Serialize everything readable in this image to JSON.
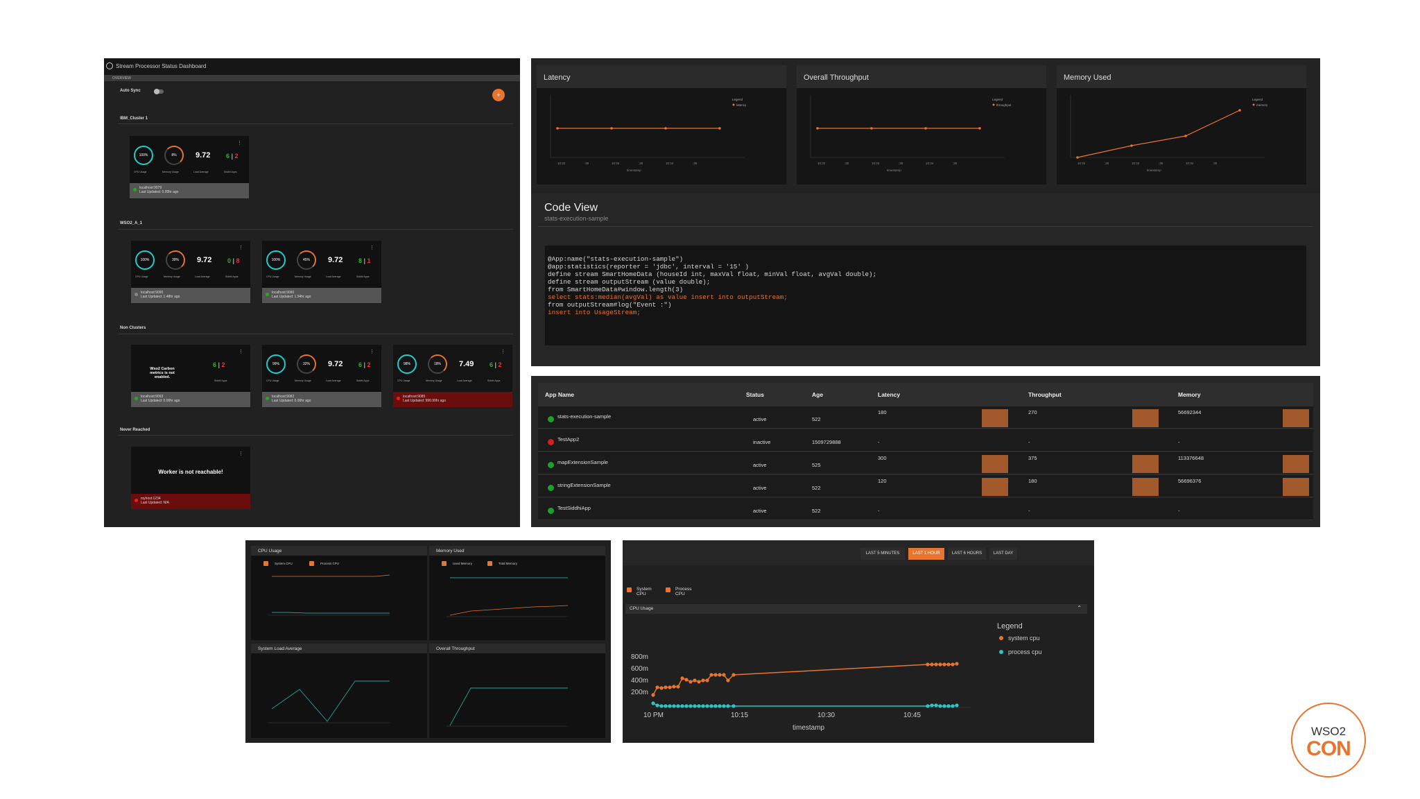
{
  "dashboard": {
    "title": "Stream Processor Status Dashboard",
    "tab": "OVERVIEW",
    "auto_sync": "Auto Sync",
    "groups": [
      {
        "name": "IBM_Cluster 1"
      },
      {
        "name": "WSO2_A_1"
      },
      {
        "name": "Non Clusters"
      },
      {
        "name": "Never Reached"
      }
    ],
    "card_labels": {
      "cpu": "CPU Usage",
      "memory": "Memory Usage",
      "load": "Load Average",
      "siddhi": "Siddhi Apps"
    },
    "cards": [
      {
        "cpu": "100%",
        "mem": "8%",
        "load": "9.72",
        "active": "6",
        "inactive": "2",
        "host": "localhost:9079",
        "updated": "Last Updated: 0.00hr ago"
      },
      {
        "cpu": "100%",
        "mem": "39%",
        "load": "9.72",
        "active": "0",
        "inactive": "8",
        "host": "localhost:9090",
        "updated": "Last Updated: 1.48hr ago"
      },
      {
        "cpu": "100%",
        "mem": "45%",
        "load": "9.72",
        "active": "8",
        "inactive": "1",
        "host": "localhost:9090",
        "updated": "Last Updated: 1.94hr ago"
      },
      {
        "message": "Wso2 Carbon metrics is not enabled.",
        "active": "6",
        "inactive": "2",
        "host": "localhost:9093",
        "updated": "Last Updated: 0.00hr ago"
      },
      {
        "cpu": "99%",
        "mem": "32%",
        "load": "9.72",
        "active": "6",
        "inactive": "2",
        "host": "localhost:9082",
        "updated": "Last Updated: 0.00hr ago"
      },
      {
        "cpu": "98%",
        "mem": "18%",
        "load": "7.49",
        "active": "6",
        "inactive": "2",
        "host": "localhost:9085",
        "updated": "Last Updated: 990.99hr ago"
      },
      {
        "message": "Worker is not reachable!",
        "host": "myhost:1234",
        "updated": "Last Updated: N/A"
      }
    ]
  },
  "metrics": {
    "panels": [
      {
        "title": "Latency",
        "legend": "Legend",
        "series": "latency",
        "x_ticks": [
          "10:32",
          ":30",
          "10:33",
          ":30",
          "10:34",
          ":30"
        ],
        "xlabel": "timestamp"
      },
      {
        "title": "Overall Throughput",
        "legend": "Legend",
        "series": "throughput",
        "x_ticks": [
          "10:32",
          ":30",
          "10:33",
          ":30",
          "10:34",
          ":30"
        ],
        "xlabel": "timestamp"
      },
      {
        "title": "Memory Used",
        "legend": "Legend",
        "series": "memory",
        "x_ticks": [
          "10:32",
          ":30",
          "10:33",
          ":30",
          "10:34",
          ":30"
        ],
        "xlabel": "timestamp"
      }
    ],
    "code_view": {
      "title": "Code View",
      "subtitle": "stats-execution-sample",
      "lines": [
        "@App:name(\"stats-execution-sample\")",
        "@app:statistics(reporter = 'jdbc', interval = '15' )",
        "define stream SmartHomeData (houseId int, maxVal float, minVal float, avgVal double);",
        "",
        "define stream outputStream (value double);",
        "",
        "from SmartHomeData#window.length(3)",
        "select stats:median(avgVal) as value insert into outputStream;",
        "",
        "from outputStream#log(\"Event :\")",
        "insert into UsageStream;"
      ]
    }
  },
  "apps_table": {
    "headers": [
      "App Name",
      "Status",
      "Age",
      "Latency",
      "Throughput",
      "Memory"
    ],
    "rows": [
      {
        "name": "stats-execution-sample",
        "status": "active",
        "age": "522",
        "latency": "180",
        "throughput": "270",
        "memory": "56692344",
        "color": "#1e9e2e"
      },
      {
        "name": "TestApp2",
        "status": "inactive",
        "age": "1509729888",
        "latency": "-",
        "throughput": "-",
        "memory": "-",
        "color": "#d42020"
      },
      {
        "name": "mapExtensionSample",
        "status": "active",
        "age": "525",
        "latency": "300",
        "throughput": "375",
        "memory": "113376648",
        "color": "#1e9e2e"
      },
      {
        "name": "stringExtensionSample",
        "status": "active",
        "age": "522",
        "latency": "120",
        "throughput": "180",
        "memory": "56696376",
        "color": "#1e9e2e"
      },
      {
        "name": "TestSiddhiApp",
        "status": "active",
        "age": "522",
        "latency": "-",
        "throughput": "-",
        "memory": "-",
        "color": "#1e9e2e"
      }
    ]
  },
  "system": {
    "cpu_title": "CPU Usage",
    "cpu_checks": [
      "System CPU",
      "Process CPU"
    ],
    "mem_title": "Memory Used",
    "mem_checks": [
      "Used Memory",
      "Total Memory"
    ],
    "load_title": "System Load Average",
    "tp_title": "Overall Throughput"
  },
  "cpu_chart": {
    "ranges": [
      "LAST 5 MINUTES",
      "LAST 1 HOUR",
      "LAST 6 HOURS",
      "LAST DAY"
    ],
    "active_range": "LAST 1 HOUR",
    "checks": [
      "System CPU",
      "Process CPU"
    ],
    "section": "CPU Usage",
    "legend_title": "Legend",
    "legend": [
      "system cpu",
      "process cpu"
    ],
    "y_ticks": [
      "800m",
      "600m",
      "400m",
      "200m"
    ],
    "x_ticks": [
      "10 PM",
      "10:15",
      "10:30",
      "10:45"
    ],
    "xlabel": "timestamp",
    "colors": {
      "system": "#e8742e",
      "process": "#2ec4c4"
    }
  },
  "brand": {
    "top": "WSO2",
    "bottom": "CON"
  }
}
